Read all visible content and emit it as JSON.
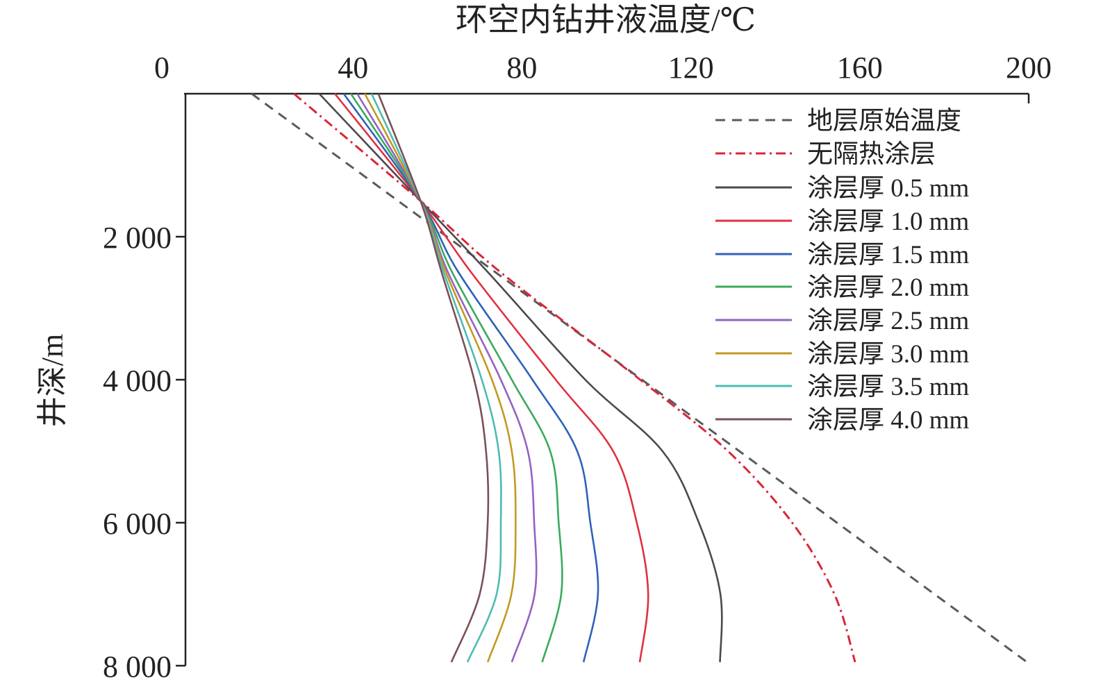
{
  "chart_data": {
    "type": "line",
    "title": "环空内钻井液温度/℃",
    "xlabel": "环空内钻井液温度/℃",
    "ylabel": "井深/m",
    "xlim": [
      0,
      200
    ],
    "ylim": [
      0,
      8000
    ],
    "x_axis_position": "top",
    "y_axis_inverted": true,
    "x_ticks": [
      0,
      40,
      80,
      120,
      160,
      200
    ],
    "x_tick_labels": [
      "0",
      "40",
      "80",
      "120",
      "160",
      "200"
    ],
    "y_ticks": [
      2000,
      4000,
      6000,
      8000
    ],
    "y_tick_labels": [
      "2 000",
      "4 000",
      "6 000",
      "8 000"
    ],
    "grid": false,
    "legend_position": "top-right",
    "depths": [
      0,
      1500,
      2500,
      4000,
      5000,
      6000,
      7000,
      7950
    ],
    "series": [
      {
        "name": "地层原始温度",
        "color": "#5a5a5a",
        "style": "dashed",
        "values": [
          16,
          50.7,
          73.8,
          108.4,
          131.5,
          154.6,
          177.7,
          199.6
        ]
      },
      {
        "name": "无隔热涂层",
        "color": "#d9263a",
        "style": "dashdot",
        "values": [
          26,
          56,
          75,
          108,
          128.8,
          144,
          154,
          158.9
        ]
      },
      {
        "name": "涂层厚 0.5 mm",
        "color": "#4a4a4e",
        "style": "solid",
        "values": [
          32,
          56,
          72,
          95,
          113.3,
          121.9,
          127,
          126.9
        ]
      },
      {
        "name": "涂层厚 1.0 mm",
        "color": "#e0303f",
        "style": "solid",
        "values": [
          35.7,
          56,
          68,
          88,
          101.6,
          107.2,
          109.9,
          107.9
        ]
      },
      {
        "name": "涂层厚 1.5 mm",
        "color": "#2f62b8",
        "style": "solid",
        "values": [
          37.8,
          56,
          65,
          82.5,
          93.1,
          96.2,
          98,
          94.6
        ]
      },
      {
        "name": "涂层厚 2.0 mm",
        "color": "#3aaa5c",
        "style": "solid",
        "values": [
          39.5,
          56,
          63.5,
          77.6,
          86.7,
          88.7,
          89.3,
          84.8
        ]
      },
      {
        "name": "涂层厚 2.5 mm",
        "color": "#9462c4",
        "style": "solid",
        "values": [
          41,
          56,
          62.5,
          75,
          81.4,
          82.9,
          83,
          77.6
        ]
      },
      {
        "name": "涂层厚 3.0 mm",
        "color": "#c29a22",
        "style": "solid",
        "values": [
          42.8,
          56,
          62,
          72.9,
          77.6,
          78.5,
          77.5,
          71.9
        ]
      },
      {
        "name": "涂层厚 3.5 mm",
        "color": "#4cbcb0",
        "style": "solid",
        "values": [
          44.4,
          56,
          61.5,
          70.5,
          74.5,
          75,
          74,
          67.1
        ]
      },
      {
        "name": "涂层厚 4.0 mm",
        "color": "#7a5058",
        "style": "solid",
        "values": [
          46,
          56,
          61,
          68.7,
          71.5,
          71.9,
          70,
          63.3
        ]
      }
    ]
  }
}
